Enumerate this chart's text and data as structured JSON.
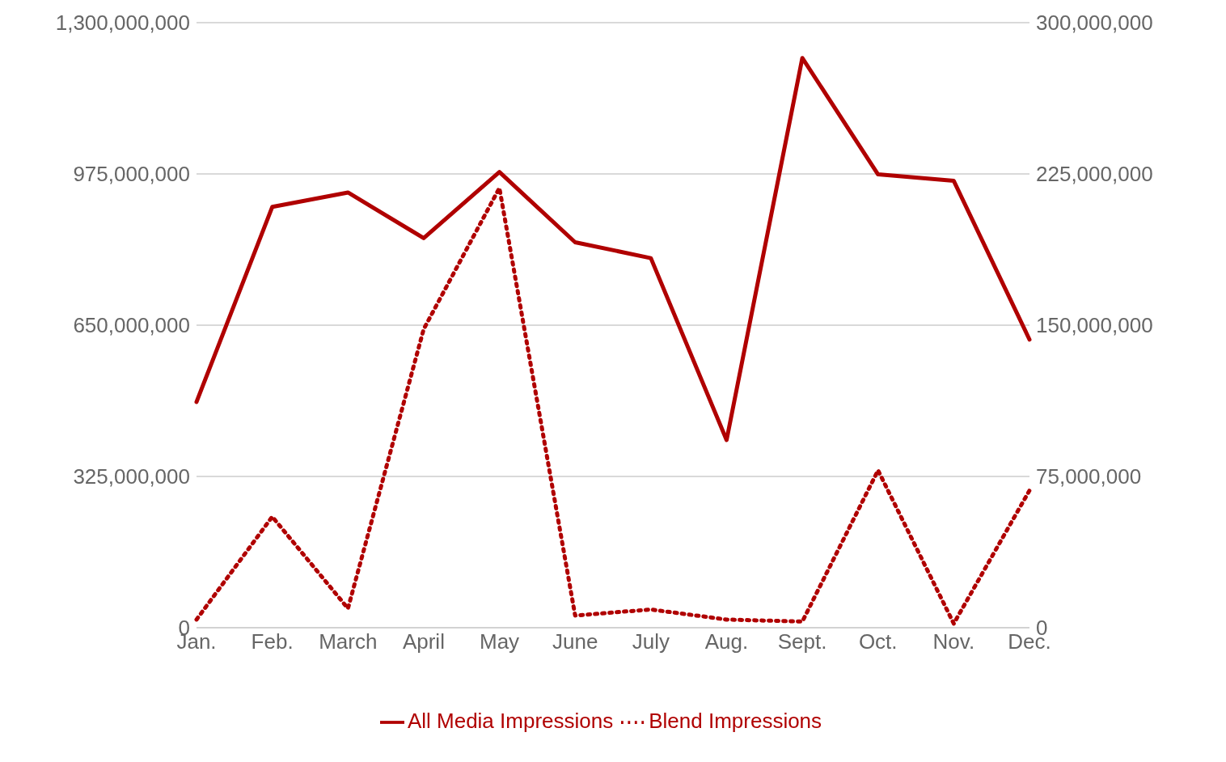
{
  "chart_data": {
    "type": "line",
    "categories": [
      "Jan.",
      "Feb.",
      "March",
      "April",
      "May",
      "June",
      "July",
      "Aug.",
      "Sept.",
      "Oct.",
      "Nov.",
      "Dec."
    ],
    "series": [
      {
        "name": "All Media Impressions",
        "color": "#b00000",
        "line_style": "solid",
        "values": [
          485000000,
          904000000,
          935000000,
          837000000,
          979000000,
          828000000,
          794000000,
          403000000,
          1224000000,
          974000000,
          960000000,
          619000000
        ]
      },
      {
        "name": "Blend Impressions",
        "color": "#b00000",
        "line_style": "dotted",
        "axis": "y2",
        "values": [
          4000000,
          55000000,
          9500000,
          148000000,
          218000000,
          6000000,
          9000000,
          4000000,
          3000000,
          78000000,
          2000000,
          68000000
        ]
      }
    ],
    "ylim": [
      0,
      1300000000
    ],
    "yticks": [
      0,
      {
        "value": 325000000,
        "label": "325,000,000"
      },
      {
        "value": 650000000,
        "label": "650,000,000"
      },
      {
        "value": 975000000,
        "label": "975,000,000"
      },
      {
        "value": 1300000000,
        "label": "1,300,000,000"
      }
    ],
    "y2lim": [
      0,
      300000000
    ],
    "y2ticks": [
      0,
      {
        "value": 75000000,
        "label": "75,000,000"
      },
      {
        "value": 150000000,
        "label": "150,000,000"
      },
      {
        "value": 225000000,
        "label": "225,000,000"
      },
      {
        "value": 300000000,
        "label": "300,000,000"
      }
    ],
    "grid": "y",
    "legend": "bottom",
    "marker": "none"
  }
}
